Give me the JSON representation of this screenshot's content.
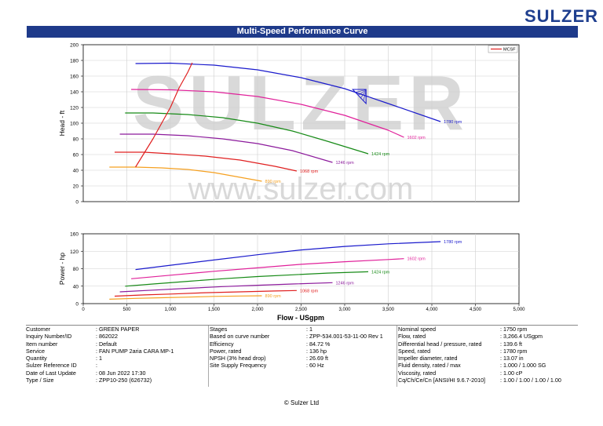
{
  "brand": "SULZER",
  "title": "Multi-Speed Performance Curve",
  "watermark": "SULZER",
  "watermark_url": "www.sulzer.com",
  "chart_data": [
    {
      "type": "line",
      "name": "head",
      "ylabel": "Head - ft",
      "xlim": [
        0,
        5000
      ],
      "ylim": [
        0,
        200
      ],
      "yticks": [
        "0",
        "20",
        "40",
        "60",
        "80",
        "100",
        "120",
        "140",
        "160",
        "180",
        "200"
      ],
      "legend": [
        "MCSF"
      ],
      "legend_position": "top-right",
      "series": [
        {
          "name": "1780 rpm",
          "color": "#1a1acc",
          "x": [
            600,
            1000,
            1500,
            2000,
            2500,
            3000,
            3500,
            4100
          ],
          "y": [
            176,
            176.5,
            174,
            168,
            158,
            144,
            125,
            102
          ]
        },
        {
          "name": "1602 rpm",
          "color": "#e0219a",
          "x": [
            550,
            1000,
            1500,
            2000,
            2500,
            3000,
            3500,
            3680
          ],
          "y": [
            143,
            142.5,
            140,
            134,
            124,
            110,
            91,
            82
          ]
        },
        {
          "name": "1424 rpm",
          "color": "#168a16",
          "x": [
            480,
            800,
            1200,
            1600,
            2000,
            2400,
            2800,
            3270
          ],
          "y": [
            113,
            113,
            111,
            107,
            100,
            90,
            77,
            61
          ]
        },
        {
          "name": "1246 rpm",
          "color": "#8c1a9c",
          "x": [
            420,
            800,
            1200,
            1600,
            2000,
            2400,
            2860
          ],
          "y": [
            86,
            86,
            84,
            80,
            74,
            65,
            50
          ]
        },
        {
          "name": "1068 rpm",
          "color": "#e02020",
          "x": [
            360,
            700,
            1000,
            1400,
            1800,
            2200,
            2450
          ],
          "y": [
            63,
            63,
            61,
            58,
            53,
            45,
            39
          ]
        },
        {
          "name": "890 rpm",
          "color": "#f5a020",
          "x": [
            300,
            600,
            900,
            1200,
            1500,
            1800,
            2050
          ],
          "y": [
            44,
            44,
            43,
            41,
            37,
            31,
            26
          ]
        },
        {
          "name": "MCSF",
          "color": "#e02020",
          "x": [
            600,
            800,
            1000,
            1100,
            1200,
            1250
          ],
          "y": [
            44,
            80,
            120,
            145,
            165,
            177
          ]
        }
      ],
      "bep_marker": {
        "x": 3200,
        "y": 133
      }
    },
    {
      "type": "line",
      "name": "power",
      "ylabel": "Power - hp",
      "xlabel": "Flow - USgpm",
      "xlim": [
        0,
        5000
      ],
      "ylim": [
        0,
        160
      ],
      "xticks": [
        "0",
        "500",
        "1,000",
        "1,500",
        "2,000",
        "2,500",
        "3,000",
        "3,500",
        "4,000",
        "4,500",
        "5,000"
      ],
      "yticks": [
        "0",
        "40",
        "80",
        "120",
        "160"
      ],
      "series": [
        {
          "name": "1780 rpm",
          "color": "#1a1acc",
          "x": [
            600,
            1000,
            1500,
            2000,
            2500,
            3000,
            3500,
            4100
          ],
          "y": [
            78,
            88,
            100,
            112,
            123,
            131,
            137,
            142
          ]
        },
        {
          "name": "1602 rpm",
          "color": "#e0219a",
          "x": [
            550,
            1000,
            1500,
            2000,
            2500,
            3000,
            3500,
            3680
          ],
          "y": [
            57,
            65,
            74,
            82,
            90,
            96,
            101,
            103
          ]
        },
        {
          "name": "1424 rpm",
          "color": "#168a16",
          "x": [
            480,
            800,
            1200,
            1600,
            2000,
            2400,
            2800,
            3270
          ],
          "y": [
            40,
            45,
            51,
            57,
            62,
            66,
            70,
            73
          ]
        },
        {
          "name": "1246 rpm",
          "color": "#8c1a9c",
          "x": [
            420,
            800,
            1200,
            1600,
            2000,
            2400,
            2860
          ],
          "y": [
            27,
            31,
            35,
            39,
            42,
            45,
            48
          ]
        },
        {
          "name": "1068 rpm",
          "color": "#e02020",
          "x": [
            360,
            700,
            1000,
            1400,
            1800,
            2200,
            2450
          ],
          "y": [
            17,
            20,
            22,
            25,
            27,
            29,
            30
          ]
        },
        {
          "name": "890 rpm",
          "color": "#f5a020",
          "x": [
            300,
            600,
            900,
            1200,
            1500,
            1800,
            2050
          ],
          "y": [
            10,
            12,
            13.5,
            15,
            16.5,
            17.5,
            18
          ]
        }
      ]
    }
  ],
  "info": {
    "col1": [
      {
        "label": "Customer",
        "value": ": GREEN PAPER"
      },
      {
        "label": "Inquiry Number/ID",
        "value": ": 862022"
      },
      {
        "label": "Item number",
        "value": ": Default"
      },
      {
        "label": "Service",
        "value": ": FAN PUMP 2aria CARA MP-1"
      },
      {
        "label": "Quantity",
        "value": ": 1"
      },
      {
        "label": "Sulzer Reference ID",
        "value": ":"
      },
      {
        "label": "Date of Last Update",
        "value": ": 08 Jun 2022 17:30"
      },
      {
        "label": "Type / Size",
        "value": ": ZPP10-250 (626732)"
      }
    ],
    "col2": [
      {
        "label": "Stages",
        "value": ": 1"
      },
      {
        "label": "Based on curve number",
        "value": ": ZPP-534.001-53-11-00 Rev 1"
      },
      {
        "label": "Efficiency",
        "value": ": 84.72 %"
      },
      {
        "label": "Power, rated",
        "value": ": 136 hp"
      },
      {
        "label": "NPSH (3% head drop)",
        "value": ": 26.69 ft"
      },
      {
        "label": "Site Supply Frequency",
        "value": ": 60 Hz"
      }
    ],
    "col3": [
      {
        "label": "Nominal speed",
        "value": ": 1750 rpm"
      },
      {
        "label": "Flow, rated",
        "value": ": 3,266.4 USgpm"
      },
      {
        "label": "Differential head / pressure, rated",
        "value": ": 139.6 ft"
      },
      {
        "label": "Speed, rated",
        "value": ": 1780 rpm"
      },
      {
        "label": "Impeller diameter, rated",
        "value": ": 13.07 in"
      },
      {
        "label": "Fluid density, rated / max",
        "value": ": 1.000 / 1.000 SG"
      },
      {
        "label": "Viscosity, rated",
        "value": ": 1.00 cP"
      },
      {
        "label": "Cq/Ch/Ce/Cn  [ANSI/HI 9.6.7-2010]",
        "value": ": 1.00 / 1.00 / 1.00 / 1.00"
      }
    ]
  },
  "footer": "© Sulzer Ltd"
}
